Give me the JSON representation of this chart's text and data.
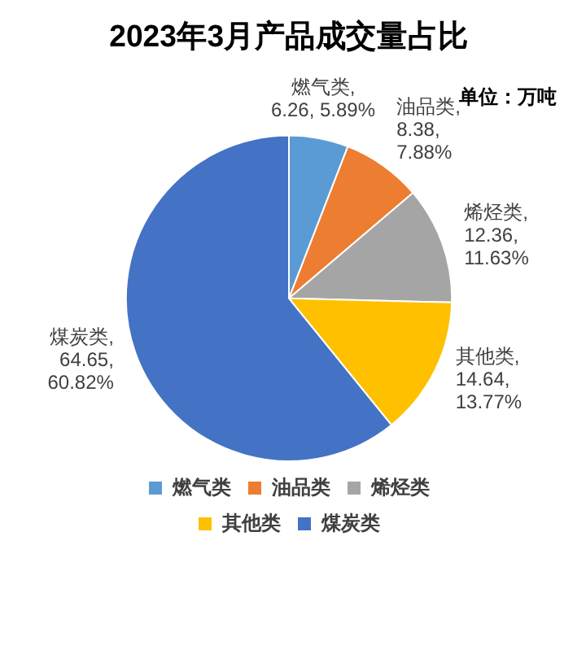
{
  "chart_data": {
    "type": "pie",
    "title": "2023年3月产品成交量占比",
    "annotations": [
      "单位：万吨"
    ],
    "categories": [
      "燃气类",
      "油品类",
      "烯烃类",
      "其他类",
      "煤炭类"
    ],
    "values": [
      6.26,
      8.38,
      12.36,
      14.64,
      64.65
    ],
    "value_labels": [
      "燃气类, 6.26, 5.89%",
      "油品类, 8.38, 7.88%",
      "烯烃类, 12.36, 11.63%",
      "其他类, 14.64, 13.77%",
      "煤炭类, 64.65, 60.82%"
    ],
    "colors": [
      "#5b9bd5",
      "#ed7d31",
      "#a5a5a5",
      "#ffc000",
      "#4472c4"
    ],
    "legend": "bottom"
  }
}
